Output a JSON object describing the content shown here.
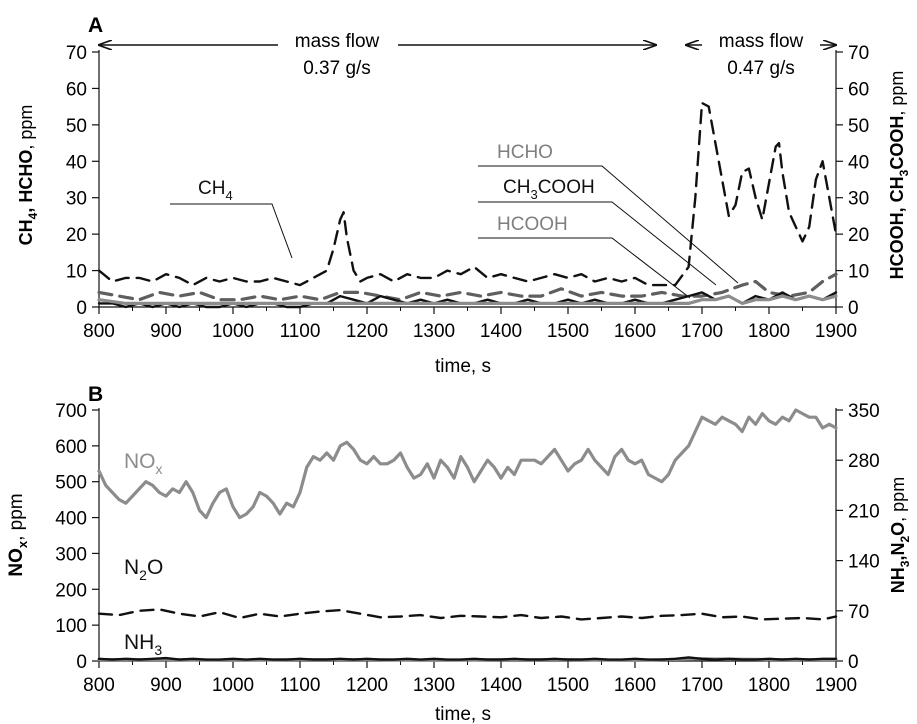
{
  "colors": {
    "black": "#111111",
    "gray": "#8c8c8c",
    "dark_gray": "#5f5f5f"
  },
  "chart_data": [
    {
      "panel": "A",
      "type": "line",
      "xlabel": "time, s",
      "ylabel_left": {
        "bold": "CH",
        "sub1": "4",
        "mid": ", HCHO",
        "unit": ", ppm"
      },
      "ylabel_right": {
        "b1": "HCOOH, CH",
        "sub1": "3",
        "b2": "COOH",
        "unit": ", ppm"
      },
      "xlim": [
        800,
        1900
      ],
      "ylim": [
        0,
        70
      ],
      "y2lim": [
        0,
        70
      ],
      "xticks": [
        "800",
        "900",
        "1000",
        "1100",
        "1200",
        "1300",
        "1400",
        "1500",
        "1600",
        "1700",
        "1800",
        "1900"
      ],
      "yticks": [
        "0",
        "10",
        "20",
        "30",
        "40",
        "50",
        "60",
        "70"
      ],
      "y2ticks": [
        "0",
        "10",
        "20",
        "30",
        "40",
        "50",
        "60",
        "70"
      ],
      "annotations": {
        "flow1_a": "mass flow",
        "flow1_b": "0.37 g/s",
        "flow2_a": "mass flow",
        "flow2_b": "0.47 g/s"
      },
      "labels": {
        "ch4": {
          "main": "CH",
          "sub": "4"
        },
        "hcho": "HCHO",
        "ch3cooh": {
          "a": "CH",
          "sub": "3",
          "b": "COOH"
        },
        "hcooh": "HCOOH"
      },
      "series": [
        {
          "name": "CH4",
          "style": "dashed",
          "color": "#111111",
          "x": [
            800,
            820,
            840,
            860,
            880,
            900,
            920,
            940,
            960,
            980,
            1000,
            1020,
            1040,
            1060,
            1080,
            1100,
            1120,
            1140,
            1150,
            1160,
            1165,
            1170,
            1180,
            1190,
            1200,
            1220,
            1240,
            1260,
            1280,
            1300,
            1320,
            1340,
            1360,
            1380,
            1400,
            1420,
            1440,
            1460,
            1480,
            1500,
            1520,
            1540,
            1560,
            1580,
            1600,
            1620,
            1640,
            1660,
            1680,
            1690,
            1700,
            1710,
            1720,
            1730,
            1740,
            1750,
            1760,
            1770,
            1780,
            1790,
            1800,
            1810,
            1815,
            1820,
            1830,
            1840,
            1850,
            1860,
            1870,
            1880,
            1890,
            1900
          ],
          "y": [
            10,
            7,
            8,
            8,
            7,
            9,
            8,
            6,
            8,
            7,
            8,
            7,
            7,
            8,
            7,
            6,
            8,
            10,
            16,
            24,
            26,
            19,
            10,
            7,
            8,
            9,
            7,
            9,
            8,
            8,
            10,
            9,
            11,
            8,
            9,
            8,
            7,
            8,
            9,
            8,
            9,
            7,
            8,
            7,
            8,
            6,
            6,
            6,
            11,
            30,
            56,
            55,
            45,
            35,
            25,
            28,
            37,
            38,
            30,
            24,
            34,
            44,
            45,
            37,
            26,
            22,
            18,
            22,
            35,
            40,
            30,
            20
          ]
        },
        {
          "name": "HCHO",
          "style": "dashed",
          "color": "#5f5f5f",
          "x": [
            800,
            830,
            860,
            890,
            920,
            950,
            980,
            1010,
            1040,
            1070,
            1100,
            1130,
            1160,
            1190,
            1220,
            1250,
            1280,
            1310,
            1340,
            1370,
            1400,
            1430,
            1460,
            1490,
            1520,
            1550,
            1580,
            1610,
            1640,
            1670,
            1700,
            1730,
            1760,
            1780,
            1800,
            1830,
            1860,
            1880,
            1900
          ],
          "y": [
            4,
            3,
            2,
            4,
            3,
            4,
            2,
            2,
            3,
            2,
            3,
            2,
            4,
            4,
            3,
            2,
            4,
            3,
            4,
            3,
            4,
            3,
            3,
            5,
            3,
            4,
            3,
            3,
            4,
            3,
            3,
            4,
            6,
            7,
            4,
            3,
            4,
            7,
            9
          ]
        },
        {
          "name": "CH3COOH",
          "style": "solid",
          "color": "#111111",
          "x": [
            800,
            820,
            840,
            860,
            880,
            900,
            920,
            940,
            960,
            980,
            1000,
            1020,
            1040,
            1060,
            1080,
            1100,
            1120,
            1140,
            1160,
            1180,
            1200,
            1220,
            1240,
            1260,
            1280,
            1300,
            1320,
            1340,
            1360,
            1380,
            1400,
            1420,
            1440,
            1460,
            1480,
            1500,
            1520,
            1540,
            1560,
            1580,
            1600,
            1620,
            1640,
            1660,
            1680,
            1700,
            1720,
            1740,
            1760,
            1780,
            1800,
            1820,
            1840,
            1860,
            1880,
            1900
          ],
          "y": [
            1,
            1,
            0,
            1,
            0,
            1,
            0,
            1,
            0,
            0,
            1,
            0,
            1,
            1,
            0,
            0,
            1,
            1,
            3,
            2,
            1,
            3,
            2,
            1,
            2,
            1,
            2,
            1,
            1,
            2,
            1,
            1,
            2,
            1,
            1,
            2,
            1,
            2,
            1,
            1,
            2,
            1,
            1,
            2,
            3,
            4,
            2,
            3,
            1,
            3,
            2,
            4,
            2,
            3,
            2,
            4
          ]
        },
        {
          "name": "HCOOH",
          "style": "solid",
          "color": "#8c8c8c",
          "x": [
            800,
            840,
            880,
            920,
            960,
            1000,
            1040,
            1080,
            1120,
            1160,
            1200,
            1240,
            1280,
            1320,
            1360,
            1400,
            1440,
            1480,
            1520,
            1560,
            1600,
            1640,
            1680,
            1700,
            1720,
            1740,
            1760,
            1780,
            1800,
            1820,
            1840,
            1860,
            1880,
            1900
          ],
          "y": [
            2,
            1,
            1,
            1,
            1,
            1,
            1,
            1,
            1,
            1,
            1,
            1,
            1,
            1,
            1,
            1,
            1,
            1,
            1,
            1,
            1,
            1,
            1,
            2,
            2,
            3,
            1,
            2,
            2,
            3,
            2,
            3,
            2,
            3
          ]
        }
      ]
    },
    {
      "panel": "B",
      "type": "line",
      "xlabel": "time, s",
      "ylabel_left": {
        "a": "NO",
        "sub": "x",
        "b": ", ppm"
      },
      "ylabel_right": {
        "a": "NH",
        "sub1": "3",
        "b": ",N",
        "sub2": "2",
        "c": "O",
        "unit": ", ppm"
      },
      "xlim": [
        800,
        1900
      ],
      "ylim": [
        0,
        700
      ],
      "y2lim": [
        0,
        350
      ],
      "xticks": [
        "800",
        "900",
        "1000",
        "1100",
        "1200",
        "1300",
        "1400",
        "1500",
        "1600",
        "1700",
        "1800",
        "1900"
      ],
      "yticks": [
        "0",
        "100",
        "200",
        "300",
        "400",
        "500",
        "600",
        "700"
      ],
      "y2ticks": [
        "0",
        "70",
        "140",
        "210",
        "280",
        "350"
      ],
      "labels": {
        "nox": {
          "a": "NO",
          "sub": "x"
        },
        "n2o": {
          "a": "N",
          "sub": "2",
          "b": "O"
        },
        "nh3": {
          "a": "NH",
          "sub": "3"
        }
      },
      "series": [
        {
          "name": "NOx",
          "style": "solid",
          "color": "#8c8c8c",
          "x": [
            800,
            810,
            820,
            830,
            840,
            850,
            860,
            870,
            880,
            890,
            900,
            910,
            920,
            930,
            940,
            950,
            960,
            970,
            980,
            990,
            1000,
            1010,
            1020,
            1030,
            1040,
            1050,
            1060,
            1070,
            1080,
            1090,
            1100,
            1110,
            1120,
            1130,
            1140,
            1150,
            1160,
            1170,
            1180,
            1190,
            1200,
            1210,
            1220,
            1230,
            1240,
            1250,
            1260,
            1270,
            1280,
            1290,
            1300,
            1310,
            1320,
            1330,
            1340,
            1350,
            1360,
            1370,
            1380,
            1390,
            1400,
            1410,
            1420,
            1430,
            1440,
            1450,
            1460,
            1470,
            1480,
            1490,
            1500,
            1510,
            1520,
            1530,
            1540,
            1550,
            1560,
            1570,
            1580,
            1590,
            1600,
            1610,
            1620,
            1630,
            1640,
            1650,
            1660,
            1670,
            1680,
            1690,
            1700,
            1710,
            1720,
            1730,
            1740,
            1750,
            1760,
            1770,
            1780,
            1790,
            1800,
            1810,
            1820,
            1830,
            1840,
            1850,
            1860,
            1870,
            1880,
            1890,
            1900
          ],
          "y": [
            530,
            490,
            470,
            450,
            440,
            460,
            480,
            500,
            490,
            470,
            460,
            480,
            470,
            500,
            470,
            420,
            400,
            440,
            470,
            480,
            430,
            400,
            410,
            430,
            470,
            460,
            440,
            410,
            440,
            430,
            470,
            540,
            570,
            560,
            580,
            560,
            600,
            610,
            590,
            560,
            550,
            570,
            550,
            550,
            560,
            580,
            540,
            510,
            520,
            550,
            510,
            560,
            540,
            510,
            570,
            540,
            500,
            530,
            560,
            540,
            510,
            540,
            520,
            560,
            560,
            560,
            550,
            570,
            590,
            560,
            530,
            550,
            560,
            590,
            560,
            540,
            520,
            570,
            590,
            560,
            550,
            560,
            520,
            510,
            500,
            520,
            560,
            580,
            600,
            640,
            680,
            670,
            660,
            680,
            670,
            660,
            640,
            680,
            660,
            690,
            670,
            660,
            680,
            670,
            700,
            690,
            680,
            680,
            650,
            660,
            650
          ]
        },
        {
          "name": "N2O",
          "style": "dashed",
          "color": "#111111",
          "x": [
            800,
            830,
            860,
            890,
            920,
            950,
            980,
            1010,
            1040,
            1070,
            1100,
            1130,
            1160,
            1190,
            1220,
            1250,
            1280,
            1310,
            1340,
            1370,
            1400,
            1430,
            1460,
            1490,
            1520,
            1550,
            1580,
            1610,
            1640,
            1670,
            1700,
            1730,
            1760,
            1790,
            1820,
            1850,
            1880,
            1900
          ],
          "y": [
            66,
            64,
            70,
            72,
            66,
            62,
            68,
            60,
            66,
            62,
            66,
            69,
            71,
            66,
            61,
            62,
            64,
            60,
            63,
            62,
            61,
            64,
            60,
            62,
            58,
            60,
            62,
            60,
            63,
            64,
            66,
            61,
            62,
            58,
            59,
            60,
            58,
            62
          ]
        },
        {
          "name": "NH3-gray",
          "style": "solid",
          "color": "#8c8c8c",
          "x": [
            800,
            900,
            1000,
            1100,
            1200,
            1300,
            1400,
            1500,
            1600,
            1700,
            1800,
            1900
          ],
          "y": [
            2,
            2,
            1,
            2,
            2,
            1,
            2,
            2,
            1,
            3,
            2,
            2
          ]
        },
        {
          "name": "NH3",
          "style": "solid",
          "color": "#111111",
          "x": [
            800,
            820,
            840,
            860,
            880,
            900,
            920,
            940,
            960,
            980,
            1000,
            1020,
            1040,
            1060,
            1080,
            1100,
            1120,
            1140,
            1160,
            1180,
            1200,
            1220,
            1240,
            1260,
            1280,
            1300,
            1320,
            1340,
            1360,
            1380,
            1400,
            1420,
            1440,
            1460,
            1480,
            1500,
            1520,
            1540,
            1560,
            1580,
            1600,
            1620,
            1640,
            1660,
            1680,
            1700,
            1720,
            1740,
            1760,
            1780,
            1800,
            1820,
            1840,
            1860,
            1880,
            1900
          ],
          "y": [
            3,
            2,
            3,
            2,
            3,
            4,
            2,
            3,
            2,
            2,
            3,
            2,
            3,
            2,
            2,
            3,
            2,
            2,
            3,
            2,
            3,
            2,
            2,
            3,
            2,
            3,
            2,
            2,
            3,
            2,
            2,
            3,
            2,
            2,
            3,
            2,
            2,
            3,
            2,
            2,
            3,
            2,
            2,
            3,
            5,
            3,
            2,
            3,
            2,
            2,
            3,
            2,
            3,
            2,
            3,
            3
          ]
        }
      ]
    }
  ]
}
